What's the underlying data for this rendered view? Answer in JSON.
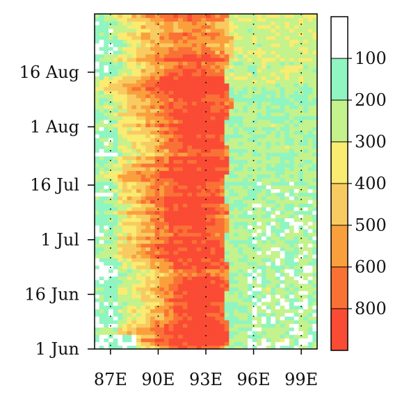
{
  "chart_data": {
    "type": "heatmap",
    "title": "",
    "xlabel": "",
    "ylabel": "",
    "x_ticks": [
      {
        "value": 87,
        "label": "87E"
      },
      {
        "value": 90,
        "label": "90E"
      },
      {
        "value": 93,
        "label": "93E"
      },
      {
        "value": 96,
        "label": "96E"
      },
      {
        "value": 99,
        "label": "99E"
      }
    ],
    "y_ticks": [
      {
        "value": "2000-06-01",
        "label": "1 Jun"
      },
      {
        "value": "2000-06-16",
        "label": "16 Jun"
      },
      {
        "value": "2000-07-01",
        "label": "1 Jul"
      },
      {
        "value": "2000-07-16",
        "label": "16 Jul"
      },
      {
        "value": "2000-08-01",
        "label": "1 Aug"
      },
      {
        "value": "2000-08-16",
        "label": "16 Aug"
      }
    ],
    "xlim": [
      86,
      100
    ],
    "ylim": [
      "2000-06-01",
      "2000-08-31"
    ],
    "vertical_dotted_lines_at": [
      87,
      90,
      93,
      96,
      99
    ],
    "colorbar": {
      "labels": [
        "100",
        "200",
        "300",
        "400",
        "500",
        "600",
        "800"
      ],
      "colors": [
        "#ffffff",
        "#8ff5c1",
        "#c4f28c",
        "#faeb71",
        "#f8cb62",
        "#f9a03c",
        "#fa7136",
        "#fa4b35"
      ]
    },
    "spatial_pattern": [
      {
        "lon_range": [
          86,
          87.5
        ],
        "west_to_east_level_hint": "lowest",
        "level_range": [
          1,
          4
        ]
      },
      {
        "lon_range": [
          88,
          94
        ],
        "level_peak_lon": 92.5,
        "max_level": 7,
        "band_mean": 5.5
      },
      {
        "lon_range": [
          94.5,
          100
        ],
        "level_range": [
          0,
          3
        ],
        "band_mean": 1.6
      }
    ]
  }
}
